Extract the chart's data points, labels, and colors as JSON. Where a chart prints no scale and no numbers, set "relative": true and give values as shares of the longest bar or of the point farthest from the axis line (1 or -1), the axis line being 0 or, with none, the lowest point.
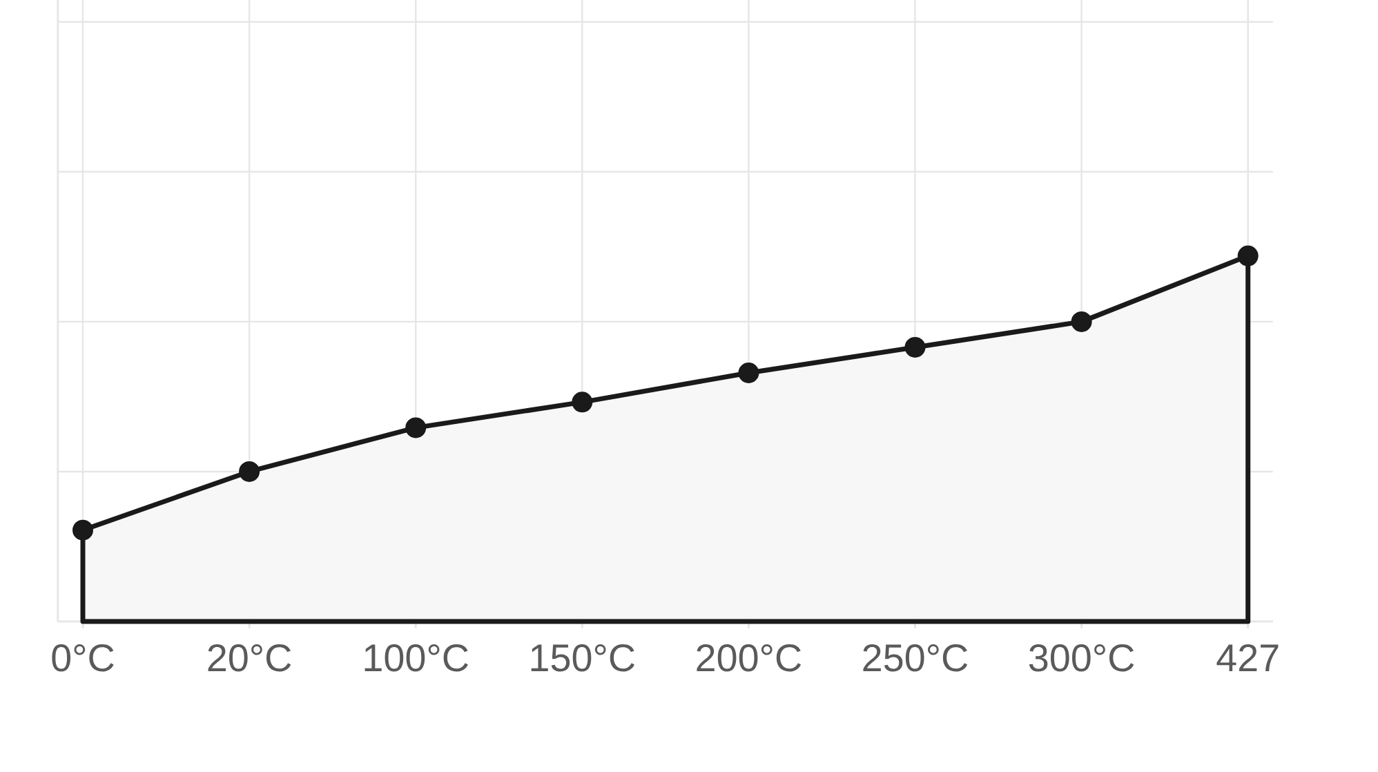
{
  "chart_data": {
    "type": "area",
    "relative": true,
    "categories": [
      "0°C",
      "20°C",
      "100°C",
      "150°C",
      "200°C",
      "250°C",
      "300°C",
      "427"
    ],
    "series": [
      {
        "color": "#1a1a1a",
        "values": [
          0.25,
          0.41,
          0.53,
          0.6,
          0.68,
          0.75,
          0.82,
          1.0
        ]
      }
    ],
    "grid": true,
    "marker": "circle",
    "line_style": "solid"
  }
}
